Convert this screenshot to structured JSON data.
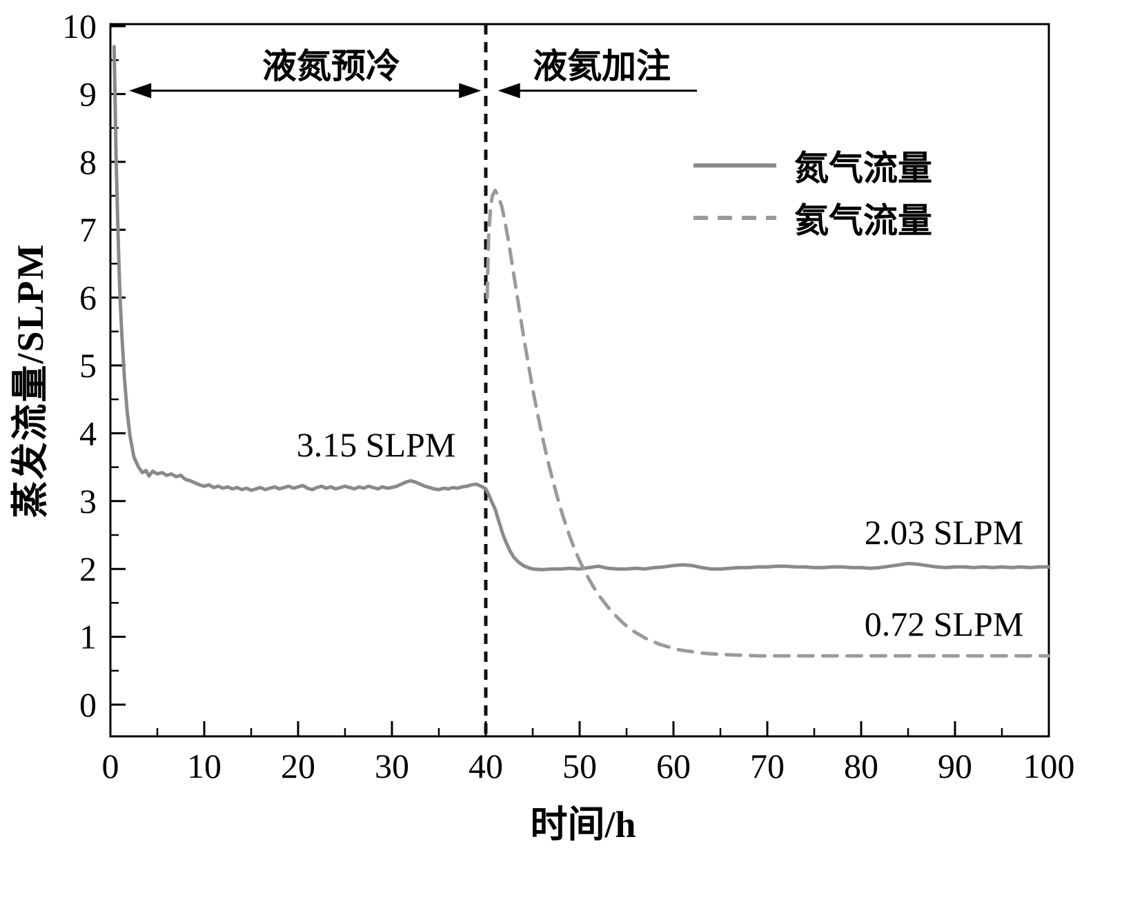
{
  "figure": {
    "background": "#ffffff",
    "axis_color": "#000000",
    "text_color": "#000000"
  },
  "chart_data": {
    "type": "line",
    "title": "",
    "xlabel": "时间/h",
    "ylabel": "蒸发流量/SLPM",
    "xlim": [
      0,
      100
    ],
    "ylim": [
      0,
      10
    ],
    "x_ticks": [
      0,
      10,
      20,
      30,
      40,
      50,
      60,
      70,
      80,
      90,
      100
    ],
    "y_ticks": [
      0,
      1,
      2,
      3,
      4,
      5,
      6,
      7,
      8,
      9,
      10
    ],
    "x_minor_step": 5,
    "y_minor_step": 0.5,
    "grid": false,
    "frame": true,
    "legend_position": "upper right",
    "divider": {
      "x": 40,
      "color": "#111111",
      "style": "dashed"
    },
    "series": [
      {
        "name": "氮气流量",
        "style": "solid",
        "color": "#8a8a8a",
        "steady_value_labels": [
          "3.15 SLPM",
          "2.03 SLPM"
        ],
        "points": [
          [
            0.4,
            9.7
          ],
          [
            0.5,
            8.9
          ],
          [
            0.6,
            8.1
          ],
          [
            0.8,
            7.0
          ],
          [
            1.0,
            6.1
          ],
          [
            1.2,
            5.5
          ],
          [
            1.5,
            4.8
          ],
          [
            1.8,
            4.3
          ],
          [
            2.1,
            3.95
          ],
          [
            2.5,
            3.65
          ],
          [
            3.0,
            3.5
          ],
          [
            3.4,
            3.42
          ],
          [
            3.8,
            3.45
          ],
          [
            4.1,
            3.37
          ],
          [
            4.5,
            3.44
          ],
          [
            5.0,
            3.4
          ],
          [
            5.5,
            3.42
          ],
          [
            6.0,
            3.38
          ],
          [
            6.5,
            3.4
          ],
          [
            7.0,
            3.36
          ],
          [
            7.5,
            3.38
          ],
          [
            8.0,
            3.32
          ],
          [
            8.5,
            3.3
          ],
          [
            9.0,
            3.27
          ],
          [
            9.5,
            3.24
          ],
          [
            10,
            3.22
          ],
          [
            10.5,
            3.24
          ],
          [
            11,
            3.2
          ],
          [
            11.5,
            3.22
          ],
          [
            12,
            3.19
          ],
          [
            12.5,
            3.21
          ],
          [
            13,
            3.18
          ],
          [
            13.5,
            3.2
          ],
          [
            14,
            3.17
          ],
          [
            14.5,
            3.19
          ],
          [
            15,
            3.16
          ],
          [
            15.5,
            3.18
          ],
          [
            16,
            3.2
          ],
          [
            16.5,
            3.17
          ],
          [
            17,
            3.19
          ],
          [
            17.5,
            3.21
          ],
          [
            18,
            3.18
          ],
          [
            18.5,
            3.2
          ],
          [
            19,
            3.22
          ],
          [
            19.5,
            3.19
          ],
          [
            20,
            3.21
          ],
          [
            20.5,
            3.23
          ],
          [
            21,
            3.19
          ],
          [
            21.5,
            3.17
          ],
          [
            22,
            3.2
          ],
          [
            22.5,
            3.22
          ],
          [
            23,
            3.19
          ],
          [
            23.5,
            3.21
          ],
          [
            24,
            3.18
          ],
          [
            24.5,
            3.2
          ],
          [
            25,
            3.22
          ],
          [
            25.5,
            3.2
          ],
          [
            26,
            3.18
          ],
          [
            26.5,
            3.21
          ],
          [
            27,
            3.19
          ],
          [
            27.5,
            3.22
          ],
          [
            28,
            3.2
          ],
          [
            28.5,
            3.18
          ],
          [
            29,
            3.21
          ],
          [
            29.5,
            3.19
          ],
          [
            30,
            3.2
          ],
          [
            30.5,
            3.22
          ],
          [
            31,
            3.25
          ],
          [
            31.5,
            3.28
          ],
          [
            32,
            3.3
          ],
          [
            32.5,
            3.28
          ],
          [
            33,
            3.25
          ],
          [
            33.5,
            3.22
          ],
          [
            34,
            3.2
          ],
          [
            34.5,
            3.18
          ],
          [
            35,
            3.17
          ],
          [
            35.5,
            3.19
          ],
          [
            36,
            3.18
          ],
          [
            36.5,
            3.2
          ],
          [
            37,
            3.19
          ],
          [
            37.5,
            3.21
          ],
          [
            38,
            3.22
          ],
          [
            38.5,
            3.24
          ],
          [
            39,
            3.25
          ],
          [
            39.5,
            3.22
          ],
          [
            40,
            3.18
          ],
          [
            40.3,
            3.1
          ],
          [
            40.6,
            3.0
          ],
          [
            41,
            2.88
          ],
          [
            41.4,
            2.7
          ],
          [
            41.8,
            2.52
          ],
          [
            42.2,
            2.38
          ],
          [
            42.6,
            2.26
          ],
          [
            43,
            2.17
          ],
          [
            43.5,
            2.1
          ],
          [
            44,
            2.05
          ],
          [
            44.5,
            2.02
          ],
          [
            45,
            2.0
          ],
          [
            46,
            1.99
          ],
          [
            47,
            2.0
          ],
          [
            48,
            2.0
          ],
          [
            49,
            2.01
          ],
          [
            50,
            2.0
          ],
          [
            51,
            2.02
          ],
          [
            52,
            2.04
          ],
          [
            53,
            2.01
          ],
          [
            54,
            2.0
          ],
          [
            55,
            2.0
          ],
          [
            56,
            2.01
          ],
          [
            57,
            2.0
          ],
          [
            58,
            2.02
          ],
          [
            59,
            2.03
          ],
          [
            60,
            2.05
          ],
          [
            61,
            2.06
          ],
          [
            62,
            2.05
          ],
          [
            63,
            2.02
          ],
          [
            64,
            2.0
          ],
          [
            65,
            2.0
          ],
          [
            66,
            2.01
          ],
          [
            67,
            2.02
          ],
          [
            68,
            2.02
          ],
          [
            69,
            2.03
          ],
          [
            70,
            2.03
          ],
          [
            71,
            2.04
          ],
          [
            72,
            2.04
          ],
          [
            73,
            2.03
          ],
          [
            74,
            2.03
          ],
          [
            75,
            2.02
          ],
          [
            76,
            2.02
          ],
          [
            77,
            2.03
          ],
          [
            78,
            2.03
          ],
          [
            79,
            2.02
          ],
          [
            80,
            2.02
          ],
          [
            81,
            2.01
          ],
          [
            82,
            2.02
          ],
          [
            83,
            2.04
          ],
          [
            84,
            2.06
          ],
          [
            85,
            2.08
          ],
          [
            86,
            2.07
          ],
          [
            87,
            2.05
          ],
          [
            88,
            2.03
          ],
          [
            89,
            2.02
          ],
          [
            90,
            2.03
          ],
          [
            91,
            2.03
          ],
          [
            92,
            2.02
          ],
          [
            93,
            2.03
          ],
          [
            94,
            2.02
          ],
          [
            95,
            2.03
          ],
          [
            96,
            2.02
          ],
          [
            97,
            2.03
          ],
          [
            98,
            2.02
          ],
          [
            99,
            2.03
          ],
          [
            100,
            2.03
          ]
        ]
      },
      {
        "name": "氦气流量",
        "style": "dashed",
        "color": "#9a9a9a",
        "steady_value_labels": [
          "0.72 SLPM"
        ],
        "points": [
          [
            40.15,
            6.0
          ],
          [
            40.3,
            6.9
          ],
          [
            40.5,
            7.3
          ],
          [
            40.7,
            7.5
          ],
          [
            41,
            7.58
          ],
          [
            41.3,
            7.5
          ],
          [
            41.7,
            7.35
          ],
          [
            42,
            7.15
          ],
          [
            42.4,
            6.85
          ],
          [
            42.8,
            6.5
          ],
          [
            43.2,
            6.15
          ],
          [
            43.6,
            5.8
          ],
          [
            44,
            5.45
          ],
          [
            44.5,
            5.05
          ],
          [
            45,
            4.65
          ],
          [
            45.5,
            4.3
          ],
          [
            46,
            3.97
          ],
          [
            46.5,
            3.66
          ],
          [
            47,
            3.38
          ],
          [
            47.5,
            3.12
          ],
          [
            48,
            2.88
          ],
          [
            48.5,
            2.66
          ],
          [
            49,
            2.46
          ],
          [
            49.5,
            2.28
          ],
          [
            50,
            2.12
          ],
          [
            50.5,
            1.98
          ],
          [
            51,
            1.85
          ],
          [
            51.5,
            1.73
          ],
          [
            52,
            1.62
          ],
          [
            52.5,
            1.53
          ],
          [
            53,
            1.44
          ],
          [
            53.5,
            1.36
          ],
          [
            54,
            1.29
          ],
          [
            54.5,
            1.22
          ],
          [
            55,
            1.16
          ],
          [
            55.5,
            1.11
          ],
          [
            56,
            1.06
          ],
          [
            56.5,
            1.02
          ],
          [
            57,
            0.98
          ],
          [
            57.5,
            0.95
          ],
          [
            58,
            0.92
          ],
          [
            58.5,
            0.89
          ],
          [
            59,
            0.87
          ],
          [
            59.5,
            0.85
          ],
          [
            60,
            0.83
          ],
          [
            60.5,
            0.81
          ],
          [
            61,
            0.8
          ],
          [
            61.5,
            0.79
          ],
          [
            62,
            0.78
          ],
          [
            62.5,
            0.77
          ],
          [
            63,
            0.76
          ],
          [
            63.5,
            0.755
          ],
          [
            64,
            0.75
          ],
          [
            64.5,
            0.745
          ],
          [
            65,
            0.74
          ],
          [
            66,
            0.735
          ],
          [
            67,
            0.73
          ],
          [
            68,
            0.725
          ],
          [
            69,
            0.72
          ],
          [
            70,
            0.72
          ],
          [
            72,
            0.72
          ],
          [
            74,
            0.72
          ],
          [
            76,
            0.72
          ],
          [
            78,
            0.72
          ],
          [
            80,
            0.72
          ],
          [
            82,
            0.72
          ],
          [
            84,
            0.72
          ],
          [
            86,
            0.72
          ],
          [
            88,
            0.72
          ],
          [
            90,
            0.72
          ],
          [
            92,
            0.72
          ],
          [
            94,
            0.72
          ],
          [
            96,
            0.72
          ],
          [
            98,
            0.72
          ],
          [
            100,
            0.72
          ]
        ]
      }
    ],
    "annotations": {
      "phase1": {
        "label": "液氮预冷",
        "arrow_from": 2,
        "arrow_to": 39.5,
        "arrow_y": 9.05,
        "double_headed": true
      },
      "phase2": {
        "label": "液氦加注",
        "arrow_from": 41.3,
        "arrow_to": 62.5,
        "arrow_y": 9.05,
        "head": "left"
      },
      "value_labels": [
        {
          "text": "3.15 SLPM",
          "x": 28.3,
          "y": 3.85
        },
        {
          "text": "2.03 SLPM",
          "x": 88.8,
          "y": 2.55
        },
        {
          "text": "0.72 SLPM",
          "x": 88.8,
          "y": 1.2
        }
      ]
    }
  }
}
